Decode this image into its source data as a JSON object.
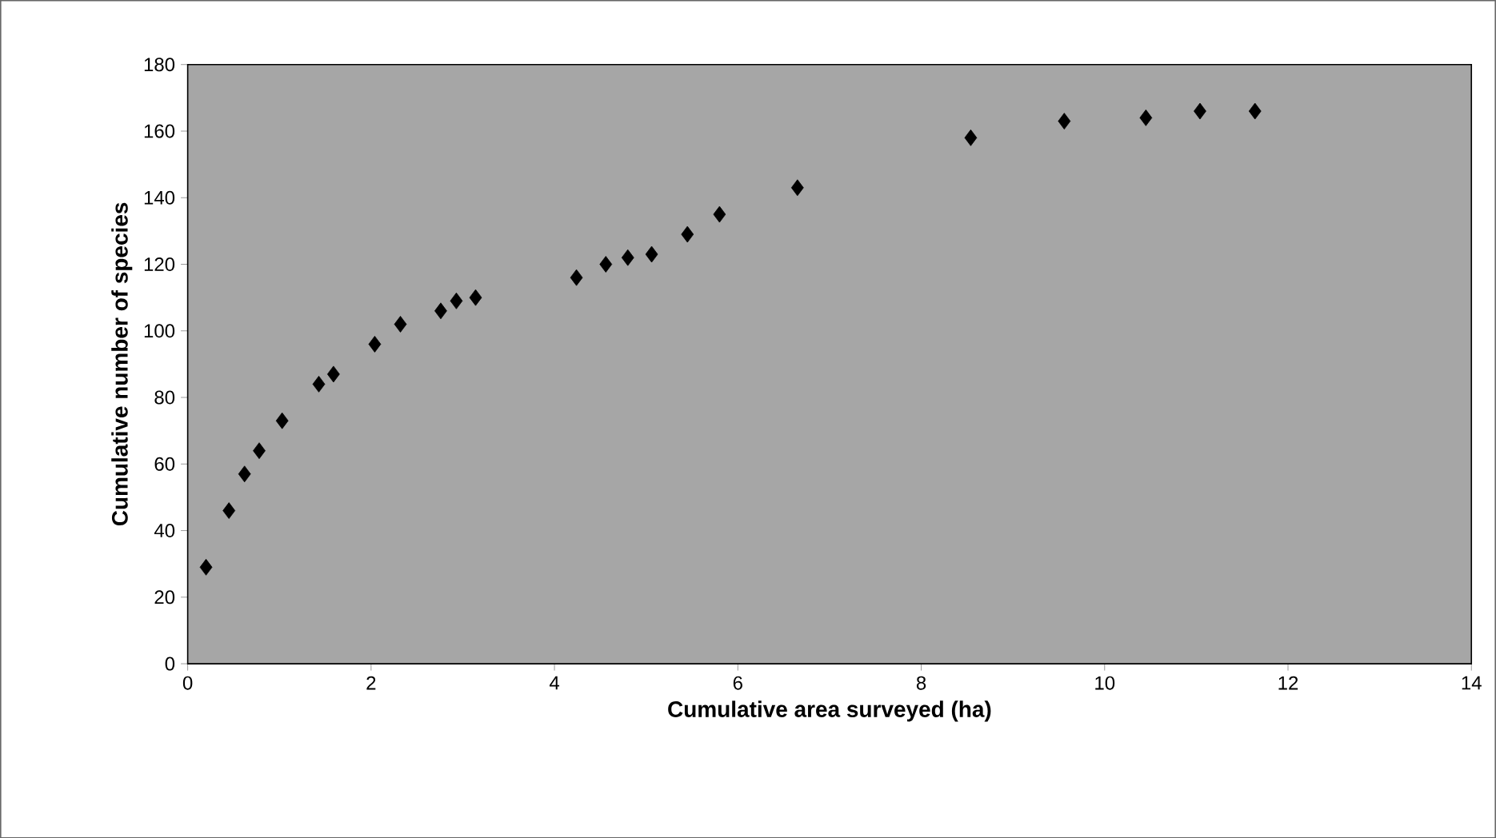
{
  "chart_data": {
    "type": "scatter",
    "xlabel": "Cumulative area surveyed (ha)",
    "ylabel": "Cumulative number of species",
    "x": [
      0.2,
      0.45,
      0.62,
      0.78,
      1.03,
      1.43,
      1.59,
      2.04,
      2.32,
      2.76,
      2.93,
      3.14,
      4.24,
      4.56,
      4.8,
      5.06,
      5.45,
      5.8,
      6.65,
      8.54,
      9.56,
      10.45,
      11.04,
      11.64
    ],
    "values": [
      29,
      46,
      57,
      64,
      73,
      84,
      87,
      96,
      102,
      106,
      109,
      110,
      116,
      120,
      122,
      123,
      129,
      135,
      143,
      158,
      163,
      164,
      166,
      166
    ],
    "color": "#000000",
    "marker": "diamond",
    "xlim": [
      0,
      14
    ],
    "xticks": [
      0,
      2,
      4,
      6,
      8,
      10,
      12,
      14
    ],
    "ylim": [
      0,
      180
    ],
    "yticks": [
      0,
      20,
      40,
      60,
      80,
      100,
      120,
      140,
      160,
      180
    ]
  }
}
